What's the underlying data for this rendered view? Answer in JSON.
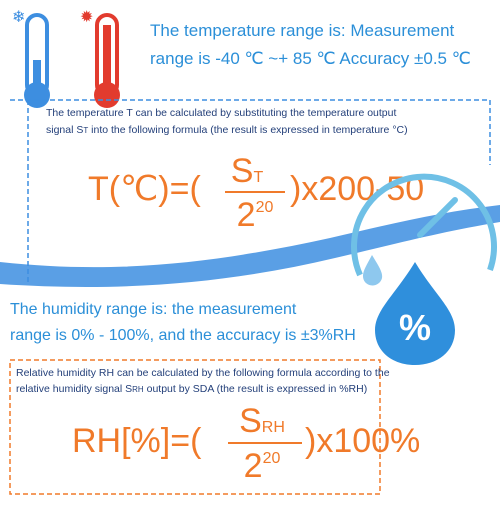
{
  "temperature": {
    "range_lines": [
      "The temperature range is: Measurement",
      "range is -40 ℃ ~+ 85 ℃ Accuracy ±0.5 ℃"
    ],
    "note": {
      "line1": "The temperature T can be calculated by substituting the temperature output",
      "line2_before": "signal S",
      "subscript": "T",
      "line2_after": " into the following formula (the result is expressed in temperature °C)"
    },
    "formula": {
      "prefix": "T(℃)=(",
      "numerator": "S",
      "numerator_sub": "T",
      "denominator": "2",
      "denominator_exp": "20",
      "suffix": ")x200-50"
    }
  },
  "humidity": {
    "range_lines": [
      "The humidity range is: the measurement",
      "range is 0% - 100%, and the accuracy is ±3%RH"
    ],
    "note": {
      "line1": "Relative humidity RH can be calculated by the following formula according to the",
      "line2_before": "relative humidity signal S",
      "subscript": "RH",
      "line2_after": " output by SDA (the result is expressed in %RH)"
    },
    "formula": {
      "prefix": "RH[%]=(",
      "numerator": "S",
      "numerator_sub": "RH",
      "denominator": "2",
      "denominator_exp": "20",
      "suffix": ")x100%"
    }
  },
  "icon_label": "%"
}
